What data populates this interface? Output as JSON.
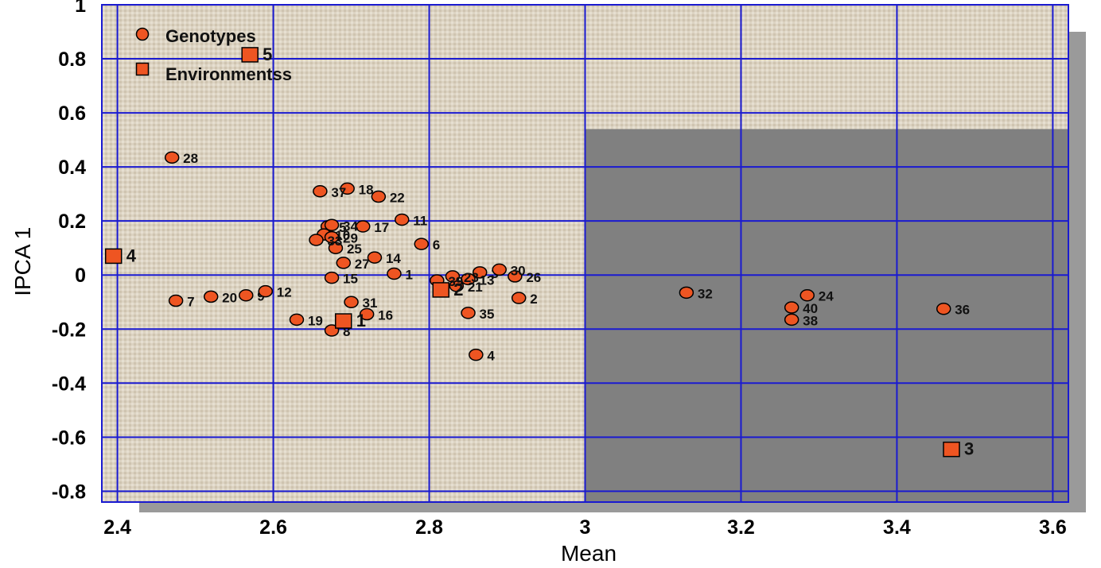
{
  "chart_data": {
    "type": "scatter",
    "xlabel": "Mean",
    "ylabel": "IPCA 1",
    "xlim": [
      2.38,
      3.62
    ],
    "ylim": [
      -0.84,
      1.0
    ],
    "x_ticks": [
      2.4,
      2.6,
      2.8,
      3,
      3.2,
      3.4,
      3.6
    ],
    "x_tick_labels": [
      "2.4",
      "2.6",
      "2.8",
      "3",
      "3.2",
      "3.4",
      "3.6"
    ],
    "y_ticks": [
      -0.8,
      -0.6,
      -0.4,
      -0.2,
      0,
      0.2,
      0.4,
      0.6,
      0.8,
      1
    ],
    "y_tick_labels": [
      "-0.8",
      "-0.6",
      "-0.4",
      "-0.2",
      "0",
      "0.2",
      "0.4",
      "0.6",
      "0.8",
      "1"
    ],
    "grid": true,
    "legend_position": "top-left",
    "colors": {
      "marker_fill": "#ee5522",
      "grid": "#1a1ad0",
      "shade": "#808080",
      "background": "#dcd3c2"
    },
    "shaded_region": {
      "x": [
        3.0,
        3.62
      ],
      "y": [
        -0.84,
        0.54
      ]
    },
    "series": [
      {
        "name": "Genotypes",
        "marker": "circle",
        "points": [
          {
            "label": "1",
            "x": 2.755,
            "y": 0.005
          },
          {
            "label": "2",
            "x": 2.915,
            "y": -0.085
          },
          {
            "label": "3",
            "x": 2.865,
            "y": 0.01
          },
          {
            "label": "4",
            "x": 2.86,
            "y": -0.295
          },
          {
            "label": "5",
            "x": 2.67,
            "y": 0.18
          },
          {
            "label": "6",
            "x": 2.79,
            "y": 0.115
          },
          {
            "label": "7",
            "x": 2.475,
            "y": -0.095
          },
          {
            "label": "8",
            "x": 2.675,
            "y": -0.205
          },
          {
            "label": "9",
            "x": 2.565,
            "y": -0.075
          },
          {
            "label": "10",
            "x": 2.665,
            "y": 0.15
          },
          {
            "label": "11",
            "x": 2.765,
            "y": 0.205
          },
          {
            "label": "12",
            "x": 2.59,
            "y": -0.06
          },
          {
            "label": "13",
            "x": 2.85,
            "y": -0.015
          },
          {
            "label": "14",
            "x": 2.73,
            "y": 0.065
          },
          {
            "label": "15",
            "x": 2.675,
            "y": -0.01
          },
          {
            "label": "16",
            "x": 2.72,
            "y": -0.145
          },
          {
            "label": "17",
            "x": 2.715,
            "y": 0.18
          },
          {
            "label": "18",
            "x": 2.695,
            "y": 0.32
          },
          {
            "label": "19",
            "x": 2.63,
            "y": -0.165
          },
          {
            "label": "20",
            "x": 2.52,
            "y": -0.08
          },
          {
            "label": "21",
            "x": 2.835,
            "y": -0.04
          },
          {
            "label": "22",
            "x": 2.735,
            "y": 0.29
          },
          {
            "label": "23",
            "x": 2.83,
            "y": -0.005
          },
          {
            "label": "24",
            "x": 3.285,
            "y": -0.075
          },
          {
            "label": "25",
            "x": 2.68,
            "y": 0.1
          },
          {
            "label": "26",
            "x": 2.91,
            "y": -0.005
          },
          {
            "label": "27",
            "x": 2.69,
            "y": 0.045
          },
          {
            "label": "28",
            "x": 2.47,
            "y": 0.435
          },
          {
            "label": "29",
            "x": 2.675,
            "y": 0.14
          },
          {
            "label": "30",
            "x": 2.89,
            "y": 0.02
          },
          {
            "label": "31",
            "x": 2.7,
            "y": -0.1
          },
          {
            "label": "32",
            "x": 3.13,
            "y": -0.065
          },
          {
            "label": "33",
            "x": 2.655,
            "y": 0.13
          },
          {
            "label": "34",
            "x": 2.675,
            "y": 0.185
          },
          {
            "label": "35",
            "x": 2.85,
            "y": -0.14
          },
          {
            "label": "36",
            "x": 3.46,
            "y": -0.125
          },
          {
            "label": "37",
            "x": 2.66,
            "y": 0.31
          },
          {
            "label": "38",
            "x": 3.265,
            "y": -0.165
          },
          {
            "label": "39",
            "x": 2.81,
            "y": -0.02
          },
          {
            "label": "40",
            "x": 3.265,
            "y": -0.12
          }
        ]
      },
      {
        "name": "Environmentss",
        "marker": "square",
        "points": [
          {
            "label": "1",
            "x": 2.69,
            "y": -0.17
          },
          {
            "label": "2",
            "x": 2.815,
            "y": -0.055
          },
          {
            "label": "3",
            "x": 3.47,
            "y": -0.645
          },
          {
            "label": "4",
            "x": 2.395,
            "y": 0.07
          },
          {
            "label": "5",
            "x": 2.57,
            "y": 0.815
          }
        ]
      }
    ]
  }
}
